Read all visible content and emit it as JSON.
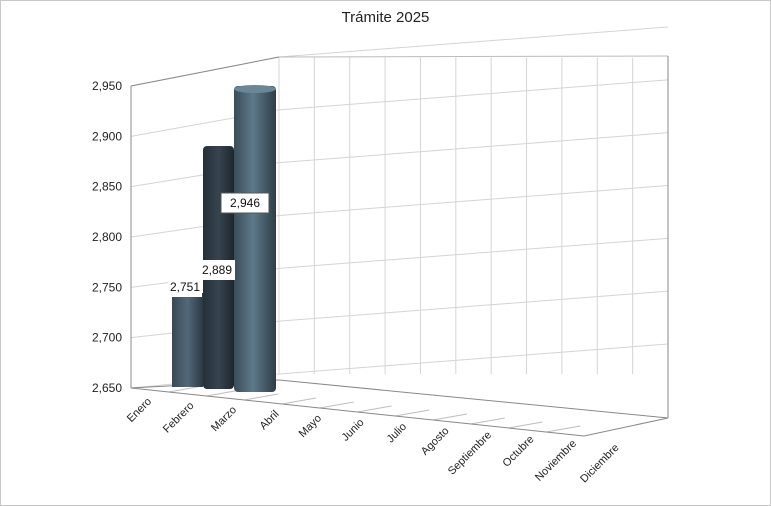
{
  "chart_data": {
    "type": "bar",
    "title": "Trámite 2025",
    "categories": [
      "Enero",
      "Febrero",
      "Marzo",
      "Abril",
      "Mayo",
      "Junio",
      "Julio",
      "Agosto",
      "Septiembre",
      "Octubre",
      "Noviembre",
      "Diciembre"
    ],
    "values": [
      null,
      2751,
      2889,
      2946,
      null,
      null,
      null,
      null,
      null,
      null,
      null,
      null
    ],
    "data_labels": [
      "",
      "2,751",
      "2,889",
      "2,946",
      "",
      "",
      "",
      "",
      "",
      "",
      "",
      ""
    ],
    "yticks": [
      "2,650",
      "2,700",
      "2,750",
      "2,800",
      "2,850",
      "2,900",
      "2,950"
    ],
    "ylim": [
      2650,
      2950
    ],
    "xlabel": "",
    "ylabel": "",
    "grid": true,
    "style": "3d-column",
    "colors": {
      "bar_dark": "#2e3a44",
      "bar_mid": "#3c4c58",
      "bar_light": "#5a7484",
      "grid": "#d4d4d4",
      "axis": "#888888"
    }
  }
}
